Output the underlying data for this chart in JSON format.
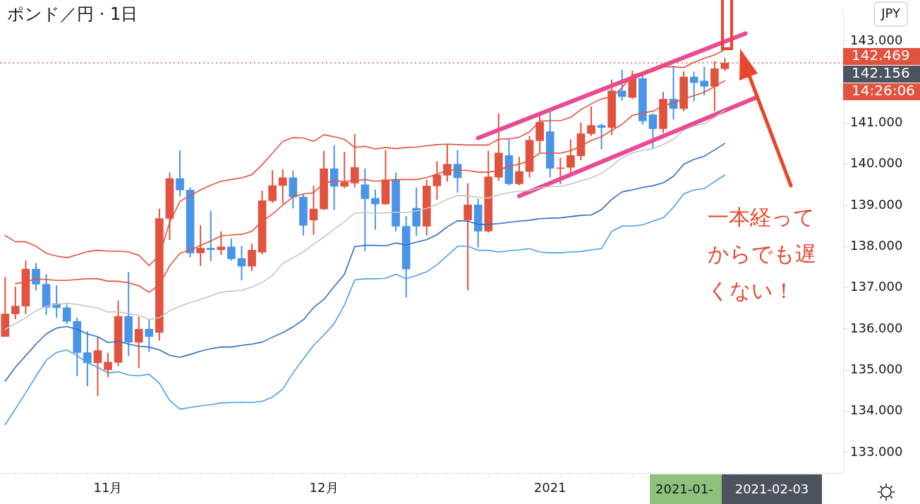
{
  "chart_data": {
    "type": "candlestick",
    "title": "ポンド／円 · 1日",
    "ylabel": "JPY",
    "categories": [
      null,
      null,
      null,
      null,
      null,
      null,
      null,
      null,
      null,
      null,
      "11月",
      null,
      null,
      null,
      null,
      null,
      null,
      null,
      null,
      null,
      null,
      null,
      null,
      null,
      null,
      null,
      null,
      null,
      null,
      null,
      null,
      "12月",
      null,
      null,
      null,
      null,
      null,
      null,
      null,
      null,
      null,
      null,
      null,
      null,
      null,
      null,
      null,
      null,
      null,
      null,
      null,
      null,
      null,
      "2021",
      null,
      null,
      null,
      null,
      null,
      null,
      null,
      null,
      null,
      null,
      null,
      null,
      null,
      null,
      null,
      null,
      null,
      null,
      null,
      null,
      null,
      null,
      null,
      null,
      null,
      null,
      null,
      null
    ],
    "ohlc": [
      [
        135.81,
        137.26,
        135.81,
        136.37
      ],
      [
        136.36,
        137.03,
        136.24,
        136.56
      ],
      [
        136.55,
        137.66,
        136.36,
        137.46
      ],
      [
        137.46,
        137.6,
        136.94,
        137.08
      ],
      [
        137.09,
        137.33,
        136.34,
        136.52
      ],
      [
        136.62,
        137.06,
        136.27,
        136.51
      ],
      [
        136.52,
        136.59,
        136.12,
        136.18
      ],
      [
        136.19,
        136.27,
        134.85,
        135.42
      ],
      [
        135.43,
        135.94,
        134.61,
        135.17
      ],
      [
        135.17,
        135.8,
        134.37,
        135.48
      ],
      [
        135.0,
        135.42,
        134.83,
        135.2
      ],
      [
        135.18,
        136.69,
        135.1,
        136.31
      ],
      [
        136.31,
        137.38,
        135.34,
        135.67
      ],
      [
        135.67,
        136.29,
        135.05,
        136.0
      ],
      [
        136.0,
        136.23,
        135.44,
        135.81
      ],
      [
        135.91,
        138.92,
        135.72,
        138.69
      ],
      [
        138.68,
        139.8,
        138.16,
        139.66
      ],
      [
        139.66,
        140.34,
        139.22,
        139.37
      ],
      [
        139.38,
        139.44,
        137.74,
        137.84
      ],
      [
        137.84,
        138.52,
        137.53,
        137.97
      ],
      [
        137.97,
        138.87,
        137.65,
        137.92
      ],
      [
        137.92,
        138.37,
        137.8,
        138.0
      ],
      [
        138.0,
        138.2,
        137.66,
        137.7
      ],
      [
        137.72,
        138.02,
        137.18,
        137.52
      ],
      [
        137.52,
        138.07,
        137.41,
        137.92
      ],
      [
        137.86,
        139.36,
        137.81,
        139.12
      ],
      [
        139.11,
        139.86,
        139.06,
        139.49
      ],
      [
        139.48,
        139.88,
        139.04,
        139.68
      ],
      [
        139.68,
        139.85,
        138.93,
        139.2
      ],
      [
        139.21,
        139.29,
        138.27,
        138.51
      ],
      [
        138.64,
        139.48,
        138.29,
        138.92
      ],
      [
        138.91,
        140.33,
        138.89,
        139.9
      ],
      [
        139.9,
        140.47,
        138.89,
        139.46
      ],
      [
        139.46,
        140.3,
        139.42,
        139.57
      ],
      [
        139.54,
        140.74,
        139.44,
        139.93
      ],
      [
        139.51,
        139.9,
        137.89,
        139.16
      ],
      [
        139.18,
        139.39,
        138.41,
        139.03
      ],
      [
        139.03,
        140.35,
        139.02,
        139.63
      ],
      [
        139.63,
        139.8,
        138.37,
        138.49
      ],
      [
        138.5,
        138.74,
        136.76,
        137.45
      ],
      [
        138.94,
        139.44,
        138.26,
        138.49
      ],
      [
        138.49,
        139.63,
        138.27,
        139.48
      ],
      [
        139.47,
        140.08,
        139.14,
        139.75
      ],
      [
        139.73,
        140.48,
        139.58,
        140.01
      ],
      [
        140.01,
        140.35,
        139.31,
        139.67
      ],
      [
        138.64,
        139.54,
        136.94,
        139.02
      ],
      [
        139.02,
        139.16,
        137.98,
        138.37
      ],
      [
        138.37,
        140.33,
        138.34,
        139.7
      ],
      [
        139.68,
        141.24,
        139.6,
        140.28
      ],
      [
        140.22,
        140.61,
        139.49,
        139.52
      ],
      [
        139.52,
        140.18,
        139.49,
        139.83
      ],
      [
        139.82,
        140.69,
        139.68,
        140.59
      ],
      [
        140.57,
        141.17,
        140.29,
        141.03
      ],
      [
        140.8,
        141.27,
        139.68,
        139.9
      ],
      [
        139.91,
        140.16,
        139.52,
        139.92
      ],
      [
        139.92,
        140.61,
        139.77,
        140.22
      ],
      [
        140.2,
        141.02,
        140.1,
        140.75
      ],
      [
        140.74,
        141.41,
        140.69,
        140.95
      ],
      [
        140.95,
        140.99,
        140.36,
        140.89
      ],
      [
        140.89,
        142.06,
        140.71,
        141.79
      ],
      [
        141.79,
        142.3,
        141.55,
        141.64
      ],
      [
        141.62,
        142.28,
        141.59,
        142.12
      ],
      [
        142.09,
        142.16,
        140.97,
        141.05
      ],
      [
        141.21,
        141.23,
        140.37,
        140.86
      ],
      [
        140.86,
        141.76,
        140.76,
        141.59
      ],
      [
        141.59,
        142.39,
        141.09,
        141.35
      ],
      [
        141.35,
        142.26,
        141.29,
        142.13
      ],
      [
        142.13,
        142.25,
        141.53,
        141.98
      ],
      [
        142.03,
        142.37,
        141.68,
        141.89
      ],
      [
        141.89,
        142.51,
        141.29,
        142.33
      ],
      [
        142.32,
        142.58,
        142.27,
        142.469
      ],
      null,
      null,
      null,
      null,
      null,
      null,
      null,
      null,
      null,
      null,
      null
    ],
    "colors": [
      "#e2533f",
      "#e2533f",
      "#e2533f",
      "#4a94e8",
      "#4a94e8",
      "#4a94e8",
      "#4a94e8",
      "#4a94e8",
      "#4a94e8",
      "#e2533f",
      "#e2533f",
      "#e2533f",
      "#4a94e8",
      "#e2533f",
      "#4a94e8",
      "#e2533f",
      "#e2533f",
      "#4a94e8",
      "#4a94e8",
      "#e2533f",
      "#4a94e8",
      "#e2533f",
      "#4a94e8",
      "#4a94e8",
      "#e2533f",
      "#e2533f",
      "#e2533f",
      "#e2533f",
      "#4a94e8",
      "#4a94e8",
      "#e2533f",
      "#e2533f",
      "#4a94e8",
      "#e2533f",
      "#e2533f",
      "#4a94e8",
      "#4a94e8",
      "#e2533f",
      "#4a94e8",
      "#4a94e8",
      "#4a94e8",
      "#e2533f",
      "#e2533f",
      "#e2533f",
      "#4a94e8",
      "#e2533f",
      "#4a94e8",
      "#e2533f",
      "#e2533f",
      "#4a94e8",
      "#e2533f",
      "#e2533f",
      "#e2533f",
      "#4a94e8",
      "#e2533f",
      "#e2533f",
      "#e2533f",
      "#e2533f",
      "#4a94e8",
      "#e2533f",
      "#4a94e8",
      "#e2533f",
      "#4a94e8",
      "#4a94e8",
      "#e2533f",
      "#4a94e8",
      "#e2533f",
      "#4a94e8",
      "#4a94e8",
      "#e2533f",
      "#e2533f",
      null,
      null,
      null,
      null,
      null,
      null,
      null,
      null,
      null,
      null,
      null
    ],
    "series": [
      {
        "type": "line",
        "color": "#e2533f",
        "values": [
          138.27,
          138.12,
          138.12,
          138.01,
          137.84,
          137.77,
          137.73,
          137.8,
          137.88,
          137.91,
          137.89,
          137.89,
          137.87,
          137.79,
          137.54,
          137.78,
          138.59,
          139.1,
          139.24,
          139.38,
          139.49,
          139.59,
          139.63,
          139.67,
          139.75,
          139.99,
          140.27,
          140.56,
          140.65,
          140.64,
          140.56,
          140.72,
          140.67,
          140.61,
          140.41,
          140.44,
          140.37,
          140.41,
          140.38,
          140.41,
          140.42,
          140.45,
          140.48,
          140.49,
          140.48,
          140.47,
          140.47,
          140.47,
          140.61,
          140.62,
          140.66,
          140.79,
          141.05,
          141.06,
          141.06,
          141.14,
          141.33,
          141.47,
          141.59,
          141.64,
          141.86,
          142.17,
          142.23,
          142.26,
          142.37,
          142.37,
          142.35,
          142.48,
          142.58,
          142.66,
          142.79,
          null,
          null,
          null,
          null,
          null,
          null,
          null,
          null,
          null,
          null,
          null
        ]
      },
      {
        "type": "line",
        "color": "#e2533f",
        "values": [
          null,
          137.1,
          137.14,
          137.22,
          137.2,
          137.18,
          137.18,
          137.2,
          137.22,
          137.22,
          137.16,
          137.16,
          137.12,
          137.05,
          136.89,
          137.08,
          137.53,
          137.84,
          137.92,
          138.03,
          138.14,
          138.26,
          138.28,
          138.3,
          138.37,
          138.62,
          138.79,
          139.01,
          139.21,
          139.28,
          139.31,
          139.54,
          139.6,
          139.59,
          139.6,
          139.63,
          139.59,
          139.61,
          139.63,
          139.63,
          139.63,
          139.68,
          139.76,
          139.86,
          139.86,
          139.85,
          139.81,
          139.81,
          139.85,
          139.96,
          140.0,
          140.1,
          140.27,
          140.27,
          140.27,
          140.33,
          140.44,
          140.58,
          140.67,
          140.83,
          140.97,
          141.19,
          141.25,
          141.29,
          141.42,
          141.5,
          141.59,
          141.67,
          141.75,
          141.89,
          142.03,
          null,
          null,
          null,
          null,
          null,
          null,
          null,
          null,
          null,
          null,
          null
        ]
      },
      {
        "type": "line",
        "color": "#c4c4c4",
        "values": [
          135.99,
          136.13,
          136.27,
          136.44,
          136.55,
          136.6,
          136.62,
          136.6,
          136.55,
          136.51,
          136.41,
          136.42,
          136.37,
          136.33,
          136.23,
          136.27,
          136.44,
          136.55,
          136.64,
          136.72,
          136.8,
          136.89,
          136.92,
          136.94,
          137.02,
          137.13,
          137.3,
          137.59,
          137.73,
          137.87,
          138.06,
          138.23,
          138.42,
          138.61,
          138.81,
          138.83,
          138.81,
          138.82,
          138.84,
          138.83,
          138.87,
          138.93,
          139.03,
          139.15,
          139.24,
          139.24,
          139.2,
          139.18,
          139.26,
          139.31,
          139.35,
          139.36,
          139.43,
          139.46,
          139.46,
          139.52,
          139.6,
          139.67,
          139.78,
          139.96,
          140.16,
          140.28,
          140.34,
          140.38,
          140.48,
          140.61,
          140.83,
          140.93,
          140.99,
          141.14,
          141.31,
          null,
          null,
          null,
          null,
          null,
          null,
          null,
          null,
          null,
          null,
          null
        ]
      },
      {
        "type": "line",
        "color": "#2f6fc9",
        "values": [
          134.73,
          135.07,
          135.35,
          135.63,
          135.88,
          136.02,
          136.06,
          135.99,
          135.88,
          135.81,
          135.67,
          135.7,
          135.63,
          135.58,
          135.56,
          135.49,
          135.36,
          135.31,
          135.38,
          135.46,
          135.52,
          135.56,
          135.56,
          135.6,
          135.63,
          135.68,
          135.8,
          135.91,
          136.05,
          136.22,
          136.52,
          136.72,
          137.03,
          137.33,
          138.0,
          138.03,
          138.03,
          138.02,
          138.09,
          138.04,
          138.11,
          138.17,
          138.29,
          138.48,
          138.63,
          138.62,
          138.54,
          138.54,
          138.56,
          138.59,
          138.62,
          138.64,
          138.68,
          138.69,
          138.7,
          138.73,
          138.76,
          138.77,
          138.9,
          139.15,
          139.33,
          139.38,
          139.44,
          139.48,
          139.55,
          139.71,
          140.0,
          140.12,
          140.2,
          140.35,
          140.51,
          null,
          null,
          null,
          null,
          null,
          null,
          null,
          null,
          null,
          null,
          null
        ]
      },
      {
        "type": "line",
        "color": "#4d9ef0",
        "values": [
          133.67,
          134.06,
          134.45,
          134.85,
          135.24,
          135.43,
          135.49,
          135.35,
          135.18,
          135.07,
          134.93,
          134.96,
          134.88,
          134.86,
          134.9,
          134.68,
          134.26,
          134.05,
          134.09,
          134.13,
          134.16,
          134.2,
          134.21,
          134.22,
          134.21,
          134.24,
          134.34,
          134.54,
          134.93,
          135.27,
          135.6,
          135.85,
          136.13,
          136.58,
          137.19,
          137.22,
          137.22,
          137.23,
          137.33,
          137.22,
          137.3,
          137.39,
          137.56,
          137.78,
          138.01,
          138.01,
          137.91,
          137.91,
          137.87,
          137.9,
          137.92,
          137.95,
          137.87,
          137.85,
          137.85,
          137.87,
          137.88,
          137.92,
          137.95,
          138.37,
          138.5,
          138.5,
          138.53,
          138.62,
          138.7,
          138.96,
          139.28,
          139.38,
          139.41,
          139.58,
          139.74,
          null,
          null,
          null,
          null,
          null,
          null,
          null,
          null,
          null,
          null,
          null
        ]
      },
      {
        "type": "line",
        "color": "#e94a93",
        "values": [
          null,
          null,
          null,
          null,
          null,
          null,
          null,
          null,
          null,
          null,
          null,
          null,
          null,
          null,
          null,
          null,
          null,
          null,
          null,
          null,
          null,
          null,
          null,
          null,
          null,
          null,
          null,
          null,
          null,
          null,
          null,
          null,
          null,
          null,
          null,
          null,
          null,
          null,
          null,
          null,
          null,
          null,
          null,
          null,
          null,
          null,
          140.64,
          null,
          null,
          null,
          null,
          null,
          null,
          null,
          null,
          null,
          null,
          null,
          null,
          null,
          null,
          null,
          null,
          null,
          null,
          null,
          null,
          null,
          null,
          null,
          null,
          null,
          143.18,
          null,
          null,
          null,
          null,
          null,
          null,
          null,
          null,
          null
        ]
      },
      {
        "type": "line",
        "color": "#e94a93",
        "values": [
          null,
          null,
          null,
          null,
          null,
          null,
          null,
          null,
          null,
          null,
          null,
          null,
          null,
          null,
          null,
          null,
          null,
          null,
          null,
          null,
          null,
          null,
          null,
          null,
          null,
          null,
          null,
          null,
          null,
          null,
          null,
          null,
          null,
          null,
          null,
          null,
          null,
          null,
          null,
          null,
          null,
          null,
          null,
          null,
          null,
          null,
          null,
          null,
          null,
          null,
          139.23,
          null,
          null,
          null,
          null,
          null,
          null,
          null,
          null,
          null,
          null,
          null,
          null,
          null,
          null,
          null,
          null,
          null,
          null,
          null,
          null,
          null,
          null,
          141.62,
          null,
          null,
          null,
          null,
          null,
          null,
          null,
          null
        ]
      }
    ],
    "ylim": [
      132.5,
      143.74
    ],
    "yticks": [
      {
        "value": 133,
        "label": "133.000"
      },
      {
        "value": 134,
        "label": "134.000"
      },
      {
        "value": 135,
        "label": "135.000"
      },
      {
        "value": 136,
        "label": "136.000"
      },
      {
        "value": 137,
        "label": "137.000"
      },
      {
        "value": 138,
        "label": "138.000"
      },
      {
        "value": 139,
        "label": "139.000"
      },
      {
        "value": 140,
        "label": "140.000"
      },
      {
        "value": 141,
        "label": "141.000"
      },
      {
        "value": 142,
        "label": null
      },
      {
        "value": 143,
        "label": "143.000"
      }
    ],
    "ref_lines": [
      {
        "axis": "y",
        "value": 142.469,
        "label": "142.469",
        "color": "#e2533f",
        "line_style": "dotted"
      }
    ],
    "annotations": [
      "142.156",
      "14:26:06",
      "2021-01-",
      "2021-02-03",
      "一本経ってからでも遅くない！"
    ],
    "marker": "none",
    "line_style": "solid",
    "grid": false,
    "legend": false
  }
}
